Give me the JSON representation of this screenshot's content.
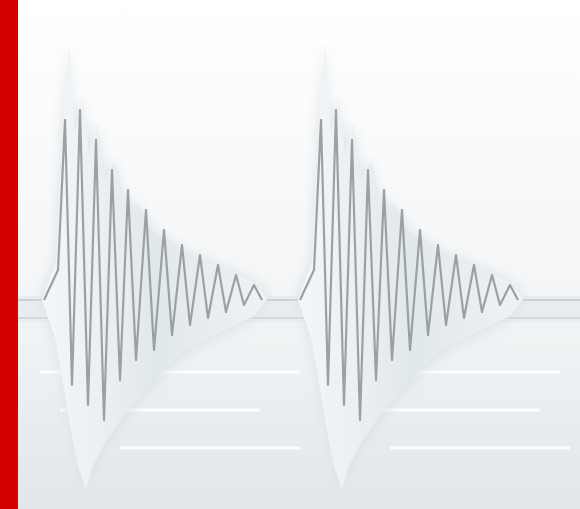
{
  "colors": {
    "accent_bar": "#d40000",
    "background": "#ffffff",
    "wave_fill": "#e4eaee",
    "wave_fill_light": "#f2f5f7",
    "wave_stroke": "#9aa0a4",
    "baseline": "#c9cfd3",
    "shadow": "#d7dcdf"
  },
  "graphic": {
    "icon": "waveform-icon",
    "bursts": 2,
    "decorative": true
  }
}
